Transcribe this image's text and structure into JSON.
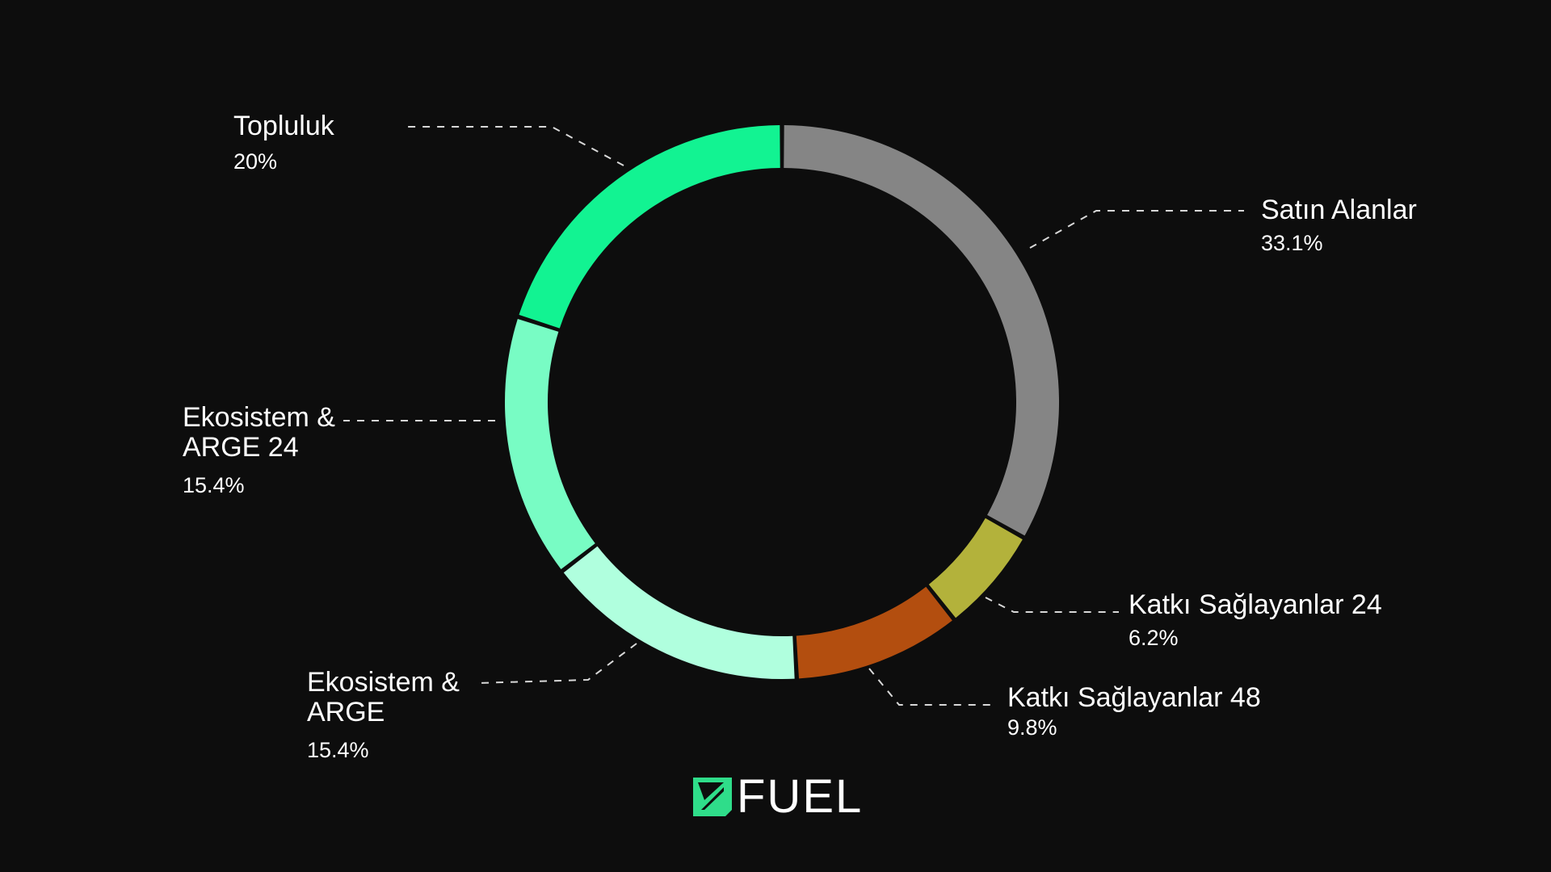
{
  "chart_data": {
    "type": "pie",
    "donut": true,
    "title": "",
    "slices": [
      {
        "label": "Satın Alanlar",
        "value": 33.1,
        "value_label": "33.1%",
        "color": "#858585"
      },
      {
        "label": "Katkı Sağlayanlar 24",
        "value": 6.2,
        "value_label": "6.2%",
        "color": "#b3b23b"
      },
      {
        "label": "Katkı Sağlayanlar 48",
        "value": 9.8,
        "value_label": "9.8%",
        "color": "#b34e0f"
      },
      {
        "label": "Ekosistem & ARGE",
        "value": 15.4,
        "value_label": "15.4%",
        "color": "#b0ffde"
      },
      {
        "label": "Ekosistem & ARGE 24",
        "value": 15.4,
        "value_label": "15.4%",
        "color": "#78fcc4"
      },
      {
        "label": "Topluluk",
        "value": 20,
        "value_label": "20%",
        "color": "#12f392"
      }
    ],
    "legend": "none"
  },
  "logo": {
    "text": "FUEL",
    "icon": "fuel-logo-icon",
    "color": "#2fdd8a"
  },
  "background_color": "#0d0d0d"
}
